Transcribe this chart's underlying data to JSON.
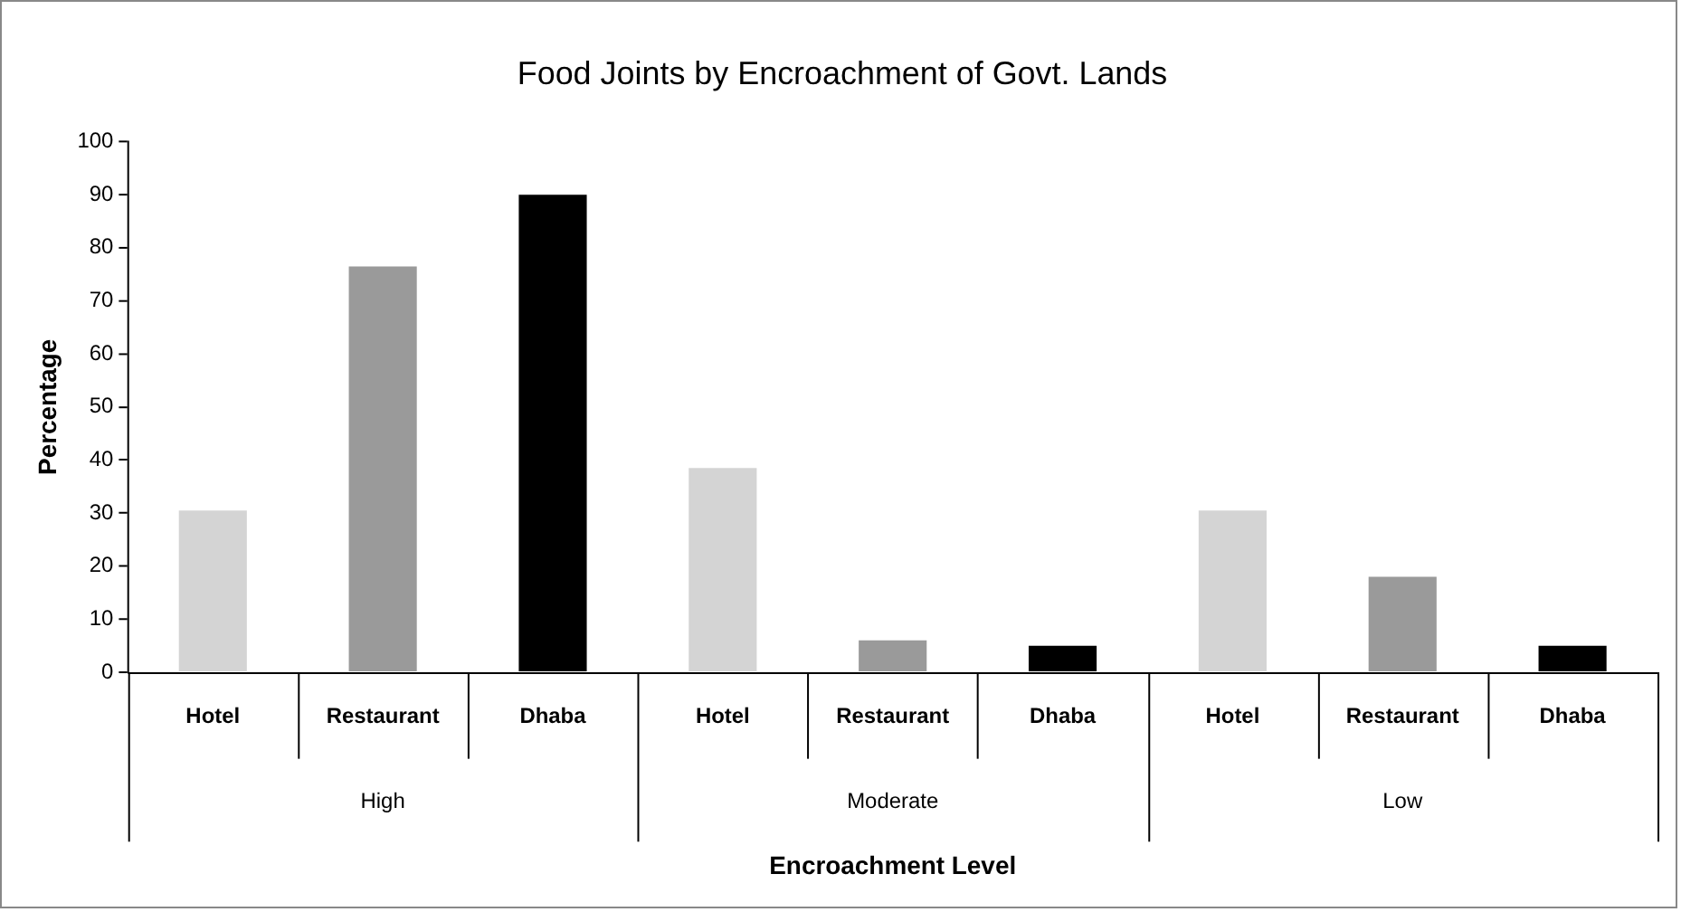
{
  "chart_data": {
    "type": "bar",
    "title": "Food Joints by Encroachment of Govt. Lands",
    "xlabel": "Encroachment Level",
    "ylabel": "Percentage",
    "categories": [
      "High",
      "Moderate",
      "Low"
    ],
    "series": [
      {
        "name": "Hotel",
        "color": "#d4d4d4",
        "values": [
          30.5,
          38.5,
          30.5
        ]
      },
      {
        "name": "Restaurant",
        "color": "#9a9a9a",
        "values": [
          76.5,
          6,
          18
        ]
      },
      {
        "name": "Dhaba",
        "color": "#000000",
        "values": [
          90,
          5,
          5
        ]
      }
    ],
    "ylim": [
      0,
      100
    ],
    "yticks": [
      0,
      10,
      20,
      30,
      40,
      50,
      60,
      70,
      80,
      90,
      100
    ],
    "grid": false,
    "legend": false
  }
}
